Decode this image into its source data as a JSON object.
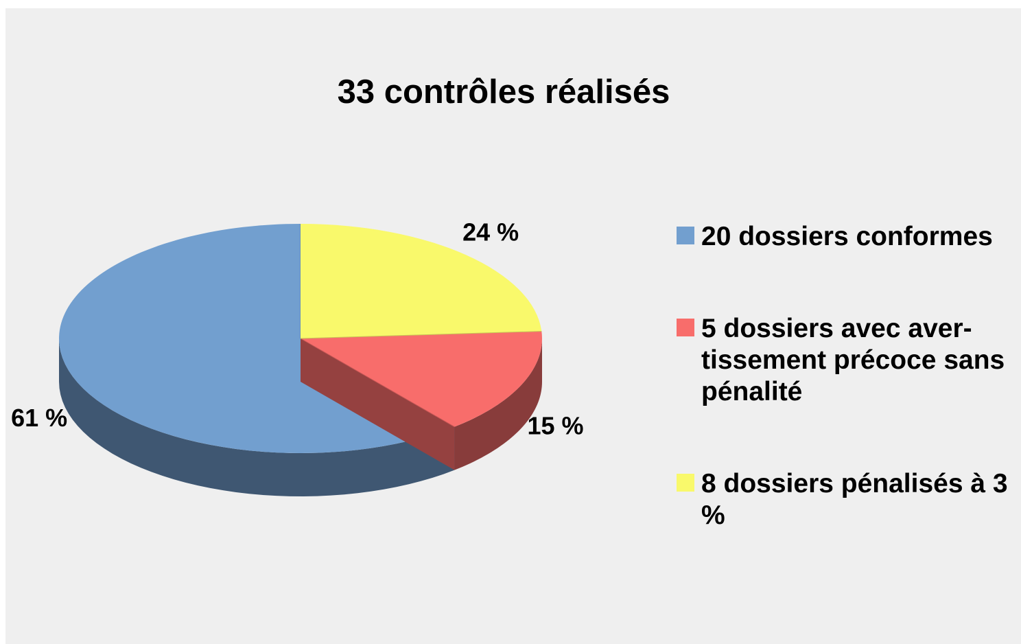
{
  "chart_data": {
    "type": "pie",
    "title": "33 contrôles réalisés",
    "categories": [
      "20 dossiers conformes",
      "5 dossiers avec aver-tissement précoce sans pénalité",
      "8 dossiers pénalisés à 3 %"
    ],
    "values": [
      61,
      15,
      24
    ],
    "value_labels": [
      "61 %",
      "15 %",
      "24 %"
    ],
    "colors": [
      "#729fcf",
      "#f86d6b",
      "#f9f96b"
    ],
    "legend": "right"
  }
}
